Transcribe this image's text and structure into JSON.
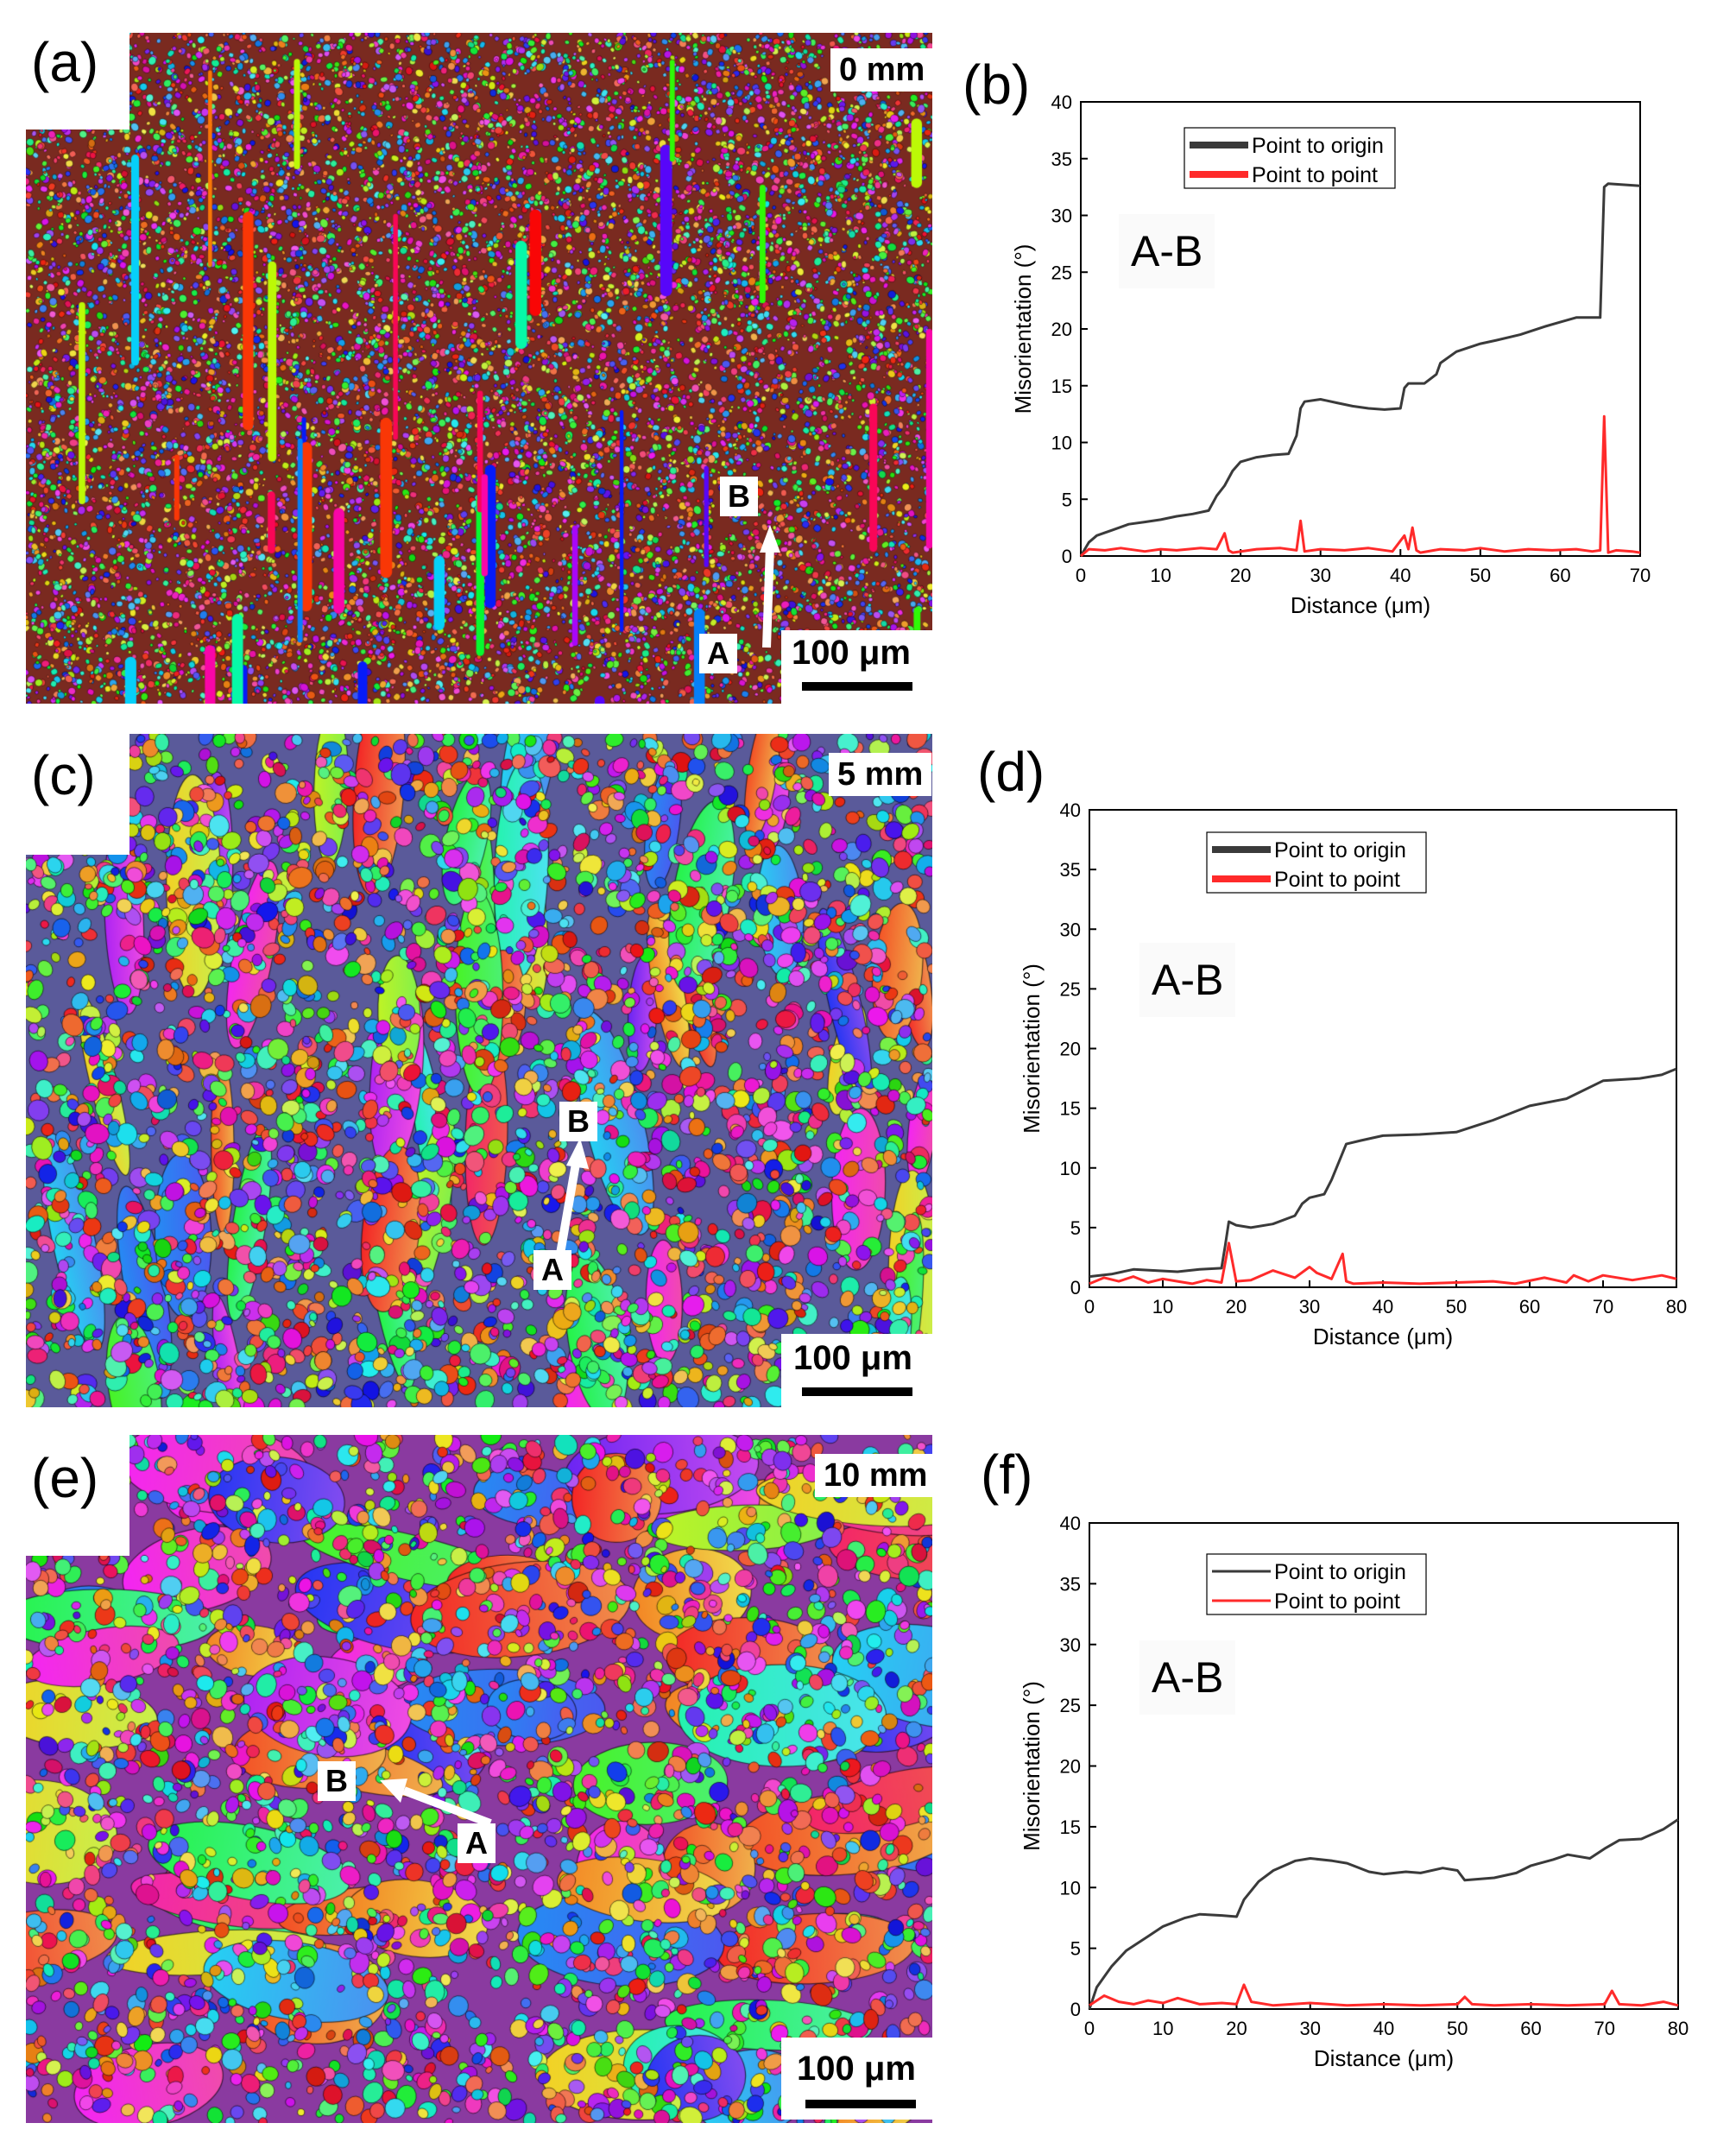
{
  "panels": {
    "a": {
      "letter": "(a)",
      "depth": "0 mm",
      "scale": "100 μm",
      "marker_a": "A",
      "marker_b": "B"
    },
    "b": {
      "letter": "(b)",
      "ab": "A-B"
    },
    "c": {
      "letter": "(c)",
      "depth": "5 mm",
      "scale": "100 μm",
      "marker_a": "A",
      "marker_b": "B"
    },
    "d": {
      "letter": "(d)",
      "ab": "A-B"
    },
    "e": {
      "letter": "(e)",
      "depth": "10 mm",
      "scale": "100 μm",
      "marker_a": "A",
      "marker_b": "B"
    },
    "f": {
      "letter": "(f)",
      "ab": "A-B"
    }
  },
  "colors": {
    "origin": "#3a3a3a",
    "point": "#ff2a2a"
  },
  "chart_data": [
    {
      "id": "b",
      "type": "line",
      "xlabel": "Distance (μm)",
      "ylabel": "Misorientation (°)",
      "xlim": [
        0,
        70
      ],
      "ylim": [
        0,
        40
      ],
      "xticks": [
        0,
        10,
        20,
        30,
        40,
        50,
        60,
        70
      ],
      "yticks": [
        0,
        5,
        10,
        15,
        20,
        25,
        30,
        35,
        40
      ],
      "legend_position": "top-left",
      "series": [
        {
          "name": "Point to origin",
          "color": "#3a3a3a",
          "x": [
            0,
            1,
            2,
            4,
            6,
            8,
            10,
            12,
            14,
            16,
            17,
            18,
            19,
            20,
            22,
            24,
            26,
            27,
            27.5,
            28,
            30,
            32,
            34,
            36,
            38,
            40,
            40.5,
            41,
            43,
            44.5,
            45,
            47,
            50,
            52,
            55,
            58,
            60,
            62,
            64,
            65,
            65.5,
            66,
            68,
            70
          ],
          "y": [
            0,
            1.2,
            1.8,
            2.3,
            2.8,
            3.0,
            3.2,
            3.5,
            3.7,
            4.0,
            5.3,
            6.2,
            7.5,
            8.3,
            8.7,
            8.9,
            9.0,
            10.6,
            13.0,
            13.6,
            13.8,
            13.5,
            13.2,
            13.0,
            12.9,
            13.0,
            14.8,
            15.2,
            15.2,
            16.0,
            17.0,
            18.0,
            18.7,
            19.0,
            19.5,
            20.2,
            20.6,
            21.0,
            21.0,
            21.0,
            32.5,
            32.8,
            32.7,
            32.6
          ]
        },
        {
          "name": "Point to point",
          "color": "#ff2a2a",
          "x": [
            0,
            1,
            3,
            5,
            8,
            10,
            12,
            15,
            17,
            18,
            18.5,
            19,
            22,
            25,
            27,
            27.5,
            28,
            30,
            33,
            36,
            39,
            40.5,
            41,
            41.5,
            42,
            42.5,
            45,
            48,
            50,
            53,
            56,
            59,
            62,
            64,
            65,
            65.5,
            66,
            67,
            69,
            70
          ],
          "y": [
            0,
            0.6,
            0.5,
            0.7,
            0.4,
            0.6,
            0.5,
            0.7,
            0.6,
            2.0,
            0.5,
            0.3,
            0.6,
            0.7,
            0.5,
            3.1,
            0.4,
            0.6,
            0.5,
            0.7,
            0.4,
            1.8,
            0.6,
            2.5,
            0.5,
            0.3,
            0.6,
            0.5,
            0.7,
            0.4,
            0.6,
            0.5,
            0.6,
            0.4,
            0.5,
            12.3,
            0.3,
            0.5,
            0.4,
            0.3
          ]
        }
      ]
    },
    {
      "id": "d",
      "type": "line",
      "xlabel": "Distance (μm)",
      "ylabel": "Misorientation (°)",
      "xlim": [
        0,
        80
      ],
      "ylim": [
        0,
        40
      ],
      "xticks": [
        0,
        10,
        20,
        30,
        40,
        50,
        60,
        70,
        80
      ],
      "yticks": [
        0,
        5,
        10,
        15,
        20,
        25,
        30,
        35,
        40
      ],
      "legend_position": "top-left",
      "series": [
        {
          "name": "Point to origin",
          "color": "#3a3a3a",
          "x": [
            0,
            3,
            6,
            9,
            12,
            15,
            18,
            18.5,
            19,
            20,
            22,
            25,
            28,
            29,
            30,
            32,
            33,
            34,
            35,
            37,
            40,
            45,
            50,
            55,
            60,
            65,
            70,
            75,
            78,
            80
          ],
          "y": [
            0.9,
            1.1,
            1.5,
            1.4,
            1.3,
            1.5,
            1.6,
            3.5,
            5.5,
            5.2,
            5.0,
            5.3,
            6.0,
            7.0,
            7.5,
            7.8,
            9.0,
            10.5,
            12.0,
            12.3,
            12.7,
            12.8,
            13.0,
            14.0,
            15.2,
            15.8,
            17.3,
            17.5,
            17.8,
            18.3
          ]
        },
        {
          "name": "Point to point",
          "color": "#ff2a2a",
          "x": [
            0,
            2,
            4,
            6,
            8,
            10,
            12,
            14,
            16,
            18,
            19,
            20,
            22,
            25,
            28,
            30,
            31,
            33,
            34.5,
            35,
            36,
            40,
            45,
            50,
            55,
            58,
            62,
            65,
            66,
            68,
            70,
            74,
            78,
            80
          ],
          "y": [
            0.3,
            0.8,
            0.5,
            0.9,
            0.4,
            0.7,
            0.5,
            0.3,
            0.6,
            0.4,
            3.7,
            0.5,
            0.6,
            1.4,
            0.8,
            1.7,
            1.2,
            0.7,
            2.8,
            0.5,
            0.3,
            0.4,
            0.3,
            0.4,
            0.5,
            0.3,
            0.8,
            0.4,
            1.0,
            0.5,
            1.0,
            0.6,
            1.0,
            0.7
          ]
        }
      ]
    },
    {
      "id": "f",
      "type": "line",
      "xlabel": "Distance (μm)",
      "ylabel": "Misorientation (°)",
      "xlim": [
        0,
        80
      ],
      "ylim": [
        0,
        40
      ],
      "xticks": [
        0,
        10,
        20,
        30,
        40,
        50,
        60,
        70,
        80
      ],
      "yticks": [
        0,
        5,
        10,
        15,
        20,
        25,
        30,
        35,
        40
      ],
      "legend_position": "top-left",
      "series": [
        {
          "name": "Point to origin",
          "color": "#3a3a3a",
          "x": [
            0,
            1,
            3,
            5,
            8,
            10,
            13,
            15,
            18,
            20,
            21,
            23,
            25,
            28,
            30,
            33,
            35,
            38,
            40,
            43,
            45,
            48,
            50,
            51,
            55,
            58,
            60,
            63,
            65,
            68,
            70,
            72,
            75,
            78,
            80
          ],
          "y": [
            0,
            1.8,
            3.5,
            4.8,
            6.0,
            6.8,
            7.5,
            7.8,
            7.7,
            7.6,
            9.0,
            10.5,
            11.4,
            12.2,
            12.4,
            12.2,
            12.0,
            11.3,
            11.1,
            11.3,
            11.2,
            11.6,
            11.4,
            10.6,
            10.8,
            11.2,
            11.8,
            12.3,
            12.7,
            12.4,
            13.2,
            13.9,
            14.0,
            14.8,
            15.6
          ]
        },
        {
          "name": "Point to point",
          "color": "#ff2a2a",
          "x": [
            0,
            2,
            4,
            6,
            8,
            10,
            12,
            15,
            18,
            20,
            21,
            22,
            25,
            30,
            35,
            40,
            45,
            50,
            51,
            52,
            55,
            60,
            65,
            70,
            71,
            72,
            75,
            78,
            80
          ],
          "y": [
            0.3,
            1.1,
            0.6,
            0.4,
            0.7,
            0.5,
            0.9,
            0.4,
            0.5,
            0.4,
            2.0,
            0.6,
            0.3,
            0.5,
            0.3,
            0.4,
            0.3,
            0.4,
            1.0,
            0.4,
            0.3,
            0.4,
            0.3,
            0.4,
            1.5,
            0.4,
            0.3,
            0.6,
            0.3
          ]
        }
      ]
    }
  ]
}
